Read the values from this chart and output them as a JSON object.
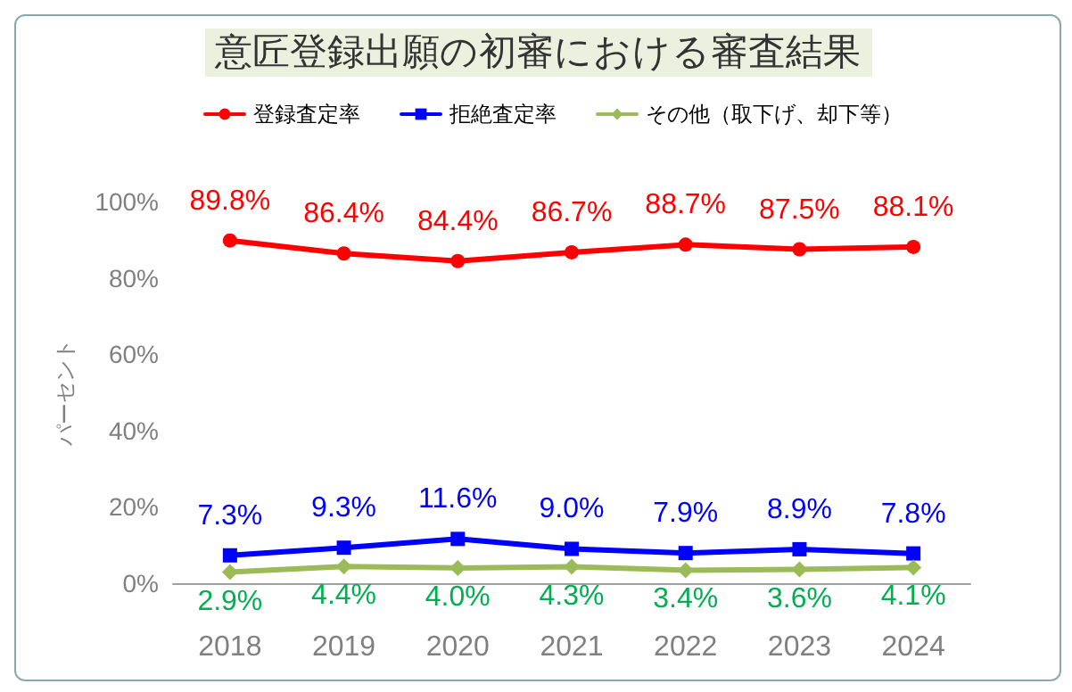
{
  "chart_data": {
    "type": "line",
    "title": "意匠登録出願の初審における審査結果",
    "ylabel": "パーセント",
    "categories": [
      "2018",
      "2019",
      "2020",
      "2021",
      "2022",
      "2023",
      "2024"
    ],
    "series": [
      {
        "name": "登録査定率",
        "color": "#ff0000",
        "marker": "circle",
        "values": [
          89.8,
          86.4,
          84.4,
          86.7,
          88.7,
          87.5,
          88.1
        ],
        "value_labels": [
          "89.8%",
          "86.4%",
          "84.4%",
          "86.7%",
          "88.7%",
          "87.5%",
          "88.1%"
        ]
      },
      {
        "name": "拒絶査定率",
        "color": "#0000ff",
        "marker": "square",
        "values": [
          7.3,
          9.3,
          11.6,
          9.0,
          7.9,
          8.9,
          7.8
        ],
        "value_labels": [
          "7.3%",
          "9.3%",
          "11.6%",
          "9.0%",
          "7.9%",
          "8.9%",
          "7.8%"
        ]
      },
      {
        "name": "その他（取下げ、却下等）",
        "color": "#9bbb59",
        "marker": "diamond",
        "values": [
          2.9,
          4.4,
          4.0,
          4.3,
          3.4,
          3.6,
          4.1
        ],
        "value_labels": [
          "2.9%",
          "4.4%",
          "4.0%",
          "4.3%",
          "3.4%",
          "3.6%",
          "4.1%"
        ]
      }
    ],
    "ylim": [
      0,
      100
    ],
    "yticks": [
      {
        "value": 0,
        "label": "0%"
      },
      {
        "value": 20,
        "label": "20%"
      },
      {
        "value": 40,
        "label": "40%"
      },
      {
        "value": 60,
        "label": "60%"
      },
      {
        "value": 80,
        "label": "80%"
      },
      {
        "value": 100,
        "label": "100%"
      }
    ],
    "grid": false,
    "legend": "top",
    "line_style": "solid"
  }
}
